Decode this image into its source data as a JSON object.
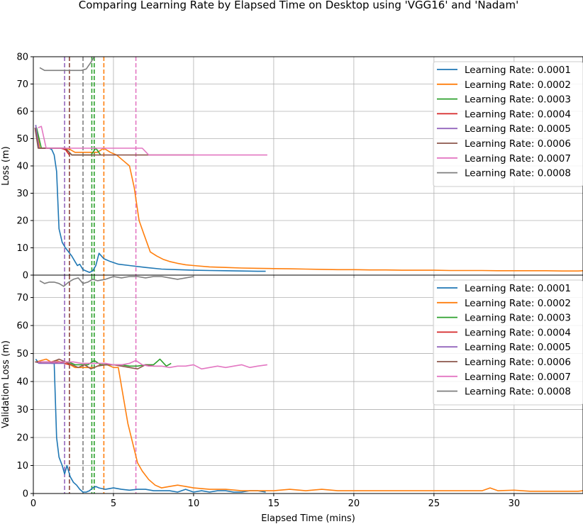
{
  "title": "Comparing Learning Rate by Elapsed Time on Desktop using 'VGG16' and 'Nadam'",
  "colors": {
    "0.0001": "#1f77b4",
    "0.0002": "#ff7f0e",
    "0.0003": "#2ca02c",
    "0.0004": "#d62728",
    "0.0005": "#9467bd",
    "0.0006": "#8c564b",
    "0.0007": "#e377c2",
    "0.0008": "#7f7f7f"
  },
  "chart_data": [
    {
      "type": "line",
      "ylabel": "Loss (m)",
      "xlabel": "",
      "xlim": [
        0,
        34.3
      ],
      "ylim": [
        0,
        80
      ],
      "grid": true,
      "legend_position": "upper right",
      "xticks": [
        0,
        5,
        10,
        15,
        20,
        25,
        30
      ],
      "yticks": [
        0,
        10,
        20,
        30,
        40,
        50,
        60,
        70,
        80
      ],
      "series": [
        {
          "name": "Learning Rate: 0.0001",
          "color": "#1f77b4",
          "x": [
            0.15,
            0.35,
            0.55,
            0.8,
            1.0,
            1.15,
            1.3,
            1.45,
            1.6,
            1.8,
            2.0,
            2.2,
            2.4,
            2.6,
            2.75,
            2.9,
            3.1,
            3.3,
            3.5,
            3.7,
            3.9,
            4.1,
            4.4,
            4.8,
            5.3,
            6.0,
            7.0,
            8.0,
            9.0,
            10.0,
            11.0,
            12.0,
            13.0,
            14.0,
            14.5
          ],
          "y": [
            55.0,
            46.5,
            46.5,
            46.5,
            46.5,
            46.0,
            44.0,
            38.0,
            17.0,
            12.0,
            10.0,
            8.5,
            7.0,
            5.0,
            3.5,
            4.0,
            2.0,
            1.5,
            1.0,
            1.5,
            3.5,
            8.0,
            6.0,
            5.0,
            4.0,
            3.5,
            2.8,
            2.2,
            2.0,
            1.8,
            1.7,
            1.6,
            1.5,
            1.4,
            1.4
          ]
        },
        {
          "name": "Learning Rate: 0.0002",
          "color": "#ff7f0e",
          "x": [
            0.2,
            0.4,
            0.6,
            0.8,
            1.0,
            1.3,
            1.6,
            2.0,
            2.3,
            2.6,
            3.0,
            3.3,
            3.6,
            4.0,
            4.4,
            4.8,
            5.2,
            5.6,
            6.0,
            6.3,
            6.6,
            6.9,
            7.3,
            7.7,
            8.1,
            8.5,
            9.0,
            9.5,
            10.0,
            11.0,
            12.0,
            13.0,
            14.0,
            15.0,
            16.0,
            17.0,
            18.0,
            19.0,
            20.0,
            21.0,
            22.0,
            23.0,
            24.0,
            25.0,
            26.0,
            27.0,
            28.0,
            29.0,
            30.0,
            31.0,
            32.0,
            33.0,
            34.0,
            34.3
          ],
          "y": [
            54.0,
            46.5,
            46.5,
            46.5,
            46.5,
            46.5,
            46.5,
            46.5,
            46.0,
            45.0,
            45.0,
            45.0,
            45.0,
            45.0,
            46.5,
            45.0,
            44.0,
            42.0,
            40.0,
            32.0,
            20.0,
            15.0,
            8.5,
            7.0,
            5.8,
            5.0,
            4.3,
            3.8,
            3.5,
            3.0,
            2.8,
            2.6,
            2.5,
            2.4,
            2.3,
            2.2,
            2.1,
            2.0,
            2.0,
            1.9,
            1.9,
            1.8,
            1.8,
            1.8,
            1.7,
            1.7,
            1.7,
            1.6,
            1.6,
            1.6,
            1.6,
            1.5,
            1.5,
            1.6
          ]
        },
        {
          "name": "Learning Rate: 0.0003",
          "color": "#2ca02c",
          "x": [
            0.2,
            0.5,
            0.8,
            1.2,
            1.6,
            2.0,
            2.4,
            2.8,
            3.2,
            3.6,
            3.9,
            4.2
          ],
          "y": [
            54.0,
            46.5,
            46.5,
            46.5,
            46.5,
            46.5,
            44.0,
            44.0,
            44.0,
            44.0,
            46.5,
            44.0
          ]
        },
        {
          "name": "Learning Rate: 0.0004",
          "color": "#d62728",
          "x": [
            0.15,
            0.35,
            0.55,
            0.8,
            1.1,
            1.4,
            1.7,
            2.0,
            2.25
          ],
          "y": [
            53.0,
            46.5,
            46.5,
            46.5,
            46.5,
            46.5,
            46.5,
            46.0,
            44.0
          ]
        },
        {
          "name": "Learning Rate: 0.0005",
          "color": "#9467bd",
          "x": [
            0.15,
            0.35,
            0.6,
            0.9,
            1.2,
            1.5,
            1.8,
            1.95
          ],
          "y": [
            55.0,
            46.5,
            46.5,
            46.5,
            46.5,
            46.5,
            46.5,
            46.5
          ]
        },
        {
          "name": "Learning Rate: 0.0006",
          "color": "#8c564b",
          "x": [
            0.1,
            0.3,
            0.6,
            1.0,
            1.5,
            2.0,
            2.4,
            3.0,
            4.0,
            5.0,
            6.0,
            7.0,
            8.0,
            9.0,
            10.0
          ],
          "y": [
            54.0,
            46.5,
            46.5,
            46.5,
            46.5,
            46.5,
            44.0,
            44.0,
            44.0,
            44.0,
            44.0,
            44.0,
            44.0,
            44.0,
            44.0
          ]
        },
        {
          "name": "Learning Rate: 0.0007",
          "color": "#e377c2",
          "x": [
            0.3,
            0.5,
            0.8,
            1.2,
            1.6,
            2.0,
            2.5,
            3.0,
            3.5,
            4.0,
            4.5,
            5.0,
            5.5,
            6.0,
            6.4,
            6.8,
            7.2,
            8.0,
            9.0,
            10.0,
            11.0,
            12.0,
            13.0,
            14.0,
            14.6
          ],
          "y": [
            54.0,
            54.5,
            46.5,
            46.5,
            46.5,
            46.5,
            46.5,
            46.5,
            46.5,
            46.5,
            46.5,
            46.5,
            46.5,
            46.5,
            46.5,
            46.5,
            44.0,
            44.0,
            44.0,
            44.0,
            44.0,
            44.0,
            44.0,
            44.0,
            44.0
          ]
        },
        {
          "name": "Learning Rate: 0.0008",
          "color": "#7f7f7f",
          "x": [
            0.4,
            0.7,
            1.0,
            1.5,
            2.0,
            2.5,
            3.0,
            3.3,
            3.6,
            3.8,
            3.9
          ],
          "y": [
            76.0,
            75.0,
            75.0,
            75.0,
            75.0,
            75.0,
            75.0,
            75.5,
            78.0,
            80.0,
            82.0
          ]
        }
      ],
      "vlines": [
        {
          "x": 1.95,
          "color": "#9467bd"
        },
        {
          "x": 2.25,
          "color": "#d62728"
        },
        {
          "x": 2.25,
          "color": "#8c564b"
        },
        {
          "x": 3.1,
          "color": "#7f7f7f"
        },
        {
          "x": 3.65,
          "color": "#2ca02c"
        },
        {
          "x": 3.8,
          "color": "#2ca02c"
        },
        {
          "x": 4.4,
          "color": "#ff7f0e"
        },
        {
          "x": 6.4,
          "color": "#e377c2"
        }
      ]
    },
    {
      "type": "line",
      "ylabel": "Validation Loss (m)",
      "xlabel": "Elapsed Time (mins)",
      "xlim": [
        0,
        34.3
      ],
      "ylim": [
        0,
        78
      ],
      "grid": true,
      "legend_position": "upper right",
      "xticks": [
        0,
        5,
        10,
        15,
        20,
        25,
        30
      ],
      "yticks": [
        0,
        10,
        20,
        30,
        40,
        50,
        60,
        70
      ],
      "series": [
        {
          "name": "Learning Rate: 0.0001",
          "color": "#1f77b4",
          "x": [
            0.15,
            0.35,
            0.55,
            0.8,
            1.0,
            1.15,
            1.3,
            1.45,
            1.6,
            1.8,
            1.95,
            2.1,
            2.3,
            2.5,
            2.7,
            2.9,
            3.1,
            3.3,
            3.5,
            3.7,
            3.9,
            4.1,
            4.5,
            5.0,
            5.5,
            6.0,
            6.5,
            7.0,
            7.5,
            8.0,
            8.5,
            9.0,
            9.5,
            10.0,
            10.5,
            11.0,
            11.5,
            12.0,
            12.5,
            13.0,
            13.5,
            14.0,
            14.5
          ],
          "y": [
            48.0,
            46.5,
            47.0,
            47.0,
            47.0,
            46.5,
            46.5,
            20.0,
            13.0,
            10.0,
            7.0,
            10.0,
            6.0,
            4.0,
            3.0,
            1.5,
            0.5,
            0.5,
            1.0,
            2.0,
            2.5,
            2.0,
            1.5,
            2.0,
            1.5,
            1.2,
            1.5,
            1.5,
            1.0,
            1.0,
            1.0,
            0.5,
            1.5,
            0.5,
            1.0,
            0.5,
            1.0,
            1.0,
            0.5,
            0.5,
            1.0,
            1.0,
            0.5
          ]
        },
        {
          "name": "Learning Rate: 0.0002",
          "color": "#ff7f0e",
          "x": [
            0.2,
            0.5,
            0.8,
            1.1,
            1.4,
            1.7,
            2.0,
            2.3,
            2.6,
            3.0,
            3.4,
            3.8,
            4.2,
            4.6,
            5.0,
            5.3,
            5.6,
            5.9,
            6.2,
            6.5,
            6.8,
            7.2,
            7.6,
            8.0,
            8.5,
            9.0,
            9.5,
            10.0,
            11.0,
            12.0,
            13.0,
            14.0,
            15.0,
            16.0,
            17.0,
            18.0,
            19.0,
            20.0,
            21.0,
            22.0,
            23.0,
            24.0,
            25.0,
            26.0,
            27.0,
            28.0,
            28.5,
            29.0,
            30.0,
            31.0,
            32.0,
            33.0,
            34.0,
            34.3
          ],
          "y": [
            47.0,
            47.5,
            48.0,
            47.0,
            47.5,
            47.0,
            47.0,
            46.0,
            45.0,
            45.0,
            45.0,
            45.0,
            46.0,
            46.0,
            45.0,
            45.0,
            35.0,
            25.0,
            18.0,
            11.0,
            8.0,
            5.0,
            3.0,
            2.0,
            2.5,
            3.0,
            2.5,
            2.0,
            1.5,
            1.5,
            1.0,
            1.0,
            1.0,
            1.5,
            1.0,
            1.5,
            1.0,
            1.0,
            1.0,
            1.0,
            1.0,
            1.0,
            1.0,
            1.0,
            1.0,
            1.0,
            2.0,
            1.0,
            1.2,
            0.8,
            0.8,
            0.8,
            0.8,
            1.0
          ]
        },
        {
          "name": "Learning Rate: 0.0003",
          "color": "#2ca02c",
          "x": [
            0.2,
            0.6,
            1.0,
            1.4,
            1.8,
            2.2,
            2.6,
            3.0,
            3.4,
            3.8,
            4.2,
            4.6,
            5.0,
            5.5,
            6.0,
            6.5,
            7.0,
            7.5,
            7.9,
            8.3,
            8.6
          ],
          "y": [
            47.0,
            47.0,
            47.0,
            47.0,
            47.0,
            47.0,
            46.0,
            46.0,
            46.0,
            47.5,
            46.0,
            46.0,
            46.0,
            46.0,
            45.5,
            45.5,
            46.0,
            46.0,
            48.0,
            45.5,
            46.5
          ]
        },
        {
          "name": "Learning Rate: 0.0004",
          "color": "#d62728",
          "x": [
            0.15,
            0.4,
            0.7,
            1.0,
            1.3,
            1.6,
            1.9,
            2.25
          ],
          "y": [
            47.0,
            47.0,
            47.0,
            47.0,
            46.5,
            47.0,
            46.5,
            46.0
          ]
        },
        {
          "name": "Learning Rate: 0.0005",
          "color": "#9467bd",
          "x": [
            0.15,
            0.4,
            0.7,
            1.0,
            1.3,
            1.6,
            1.95
          ],
          "y": [
            47.0,
            46.5,
            46.5,
            46.5,
            46.5,
            46.5,
            46.5
          ]
        },
        {
          "name": "Learning Rate: 0.0006",
          "color": "#8c564b",
          "x": [
            0.1,
            0.4,
            0.8,
            1.2,
            1.6,
            2.0,
            2.4,
            2.8,
            3.2,
            3.6,
            4.0,
            4.5,
            5.0,
            5.5,
            6.0,
            6.5,
            7.0,
            7.5,
            8.0
          ],
          "y": [
            47.0,
            47.0,
            47.0,
            47.0,
            48.0,
            47.0,
            46.0,
            45.0,
            46.0,
            44.5,
            45.5,
            46.0,
            46.0,
            45.5,
            45.0,
            44.5,
            46.0,
            45.5,
            45.5
          ]
        },
        {
          "name": "Learning Rate: 0.0007",
          "color": "#e377c2",
          "x": [
            0.3,
            0.6,
            1.0,
            1.5,
            2.0,
            2.5,
            3.0,
            3.5,
            4.0,
            4.5,
            5.0,
            5.5,
            6.0,
            6.4,
            6.8,
            7.2,
            7.6,
            8.0,
            8.5,
            9.0,
            9.5,
            10.0,
            10.5,
            11.0,
            11.5,
            12.0,
            12.5,
            13.0,
            13.5,
            14.0,
            14.6
          ],
          "y": [
            47.0,
            47.0,
            47.0,
            47.0,
            47.0,
            47.0,
            46.5,
            46.5,
            46.5,
            46.5,
            46.0,
            46.0,
            46.5,
            47.5,
            46.0,
            45.5,
            45.5,
            45.5,
            45.0,
            45.5,
            45.5,
            46.0,
            44.5,
            45.0,
            45.5,
            45.0,
            45.5,
            46.0,
            45.0,
            45.5,
            46.0
          ]
        },
        {
          "name": "Learning Rate: 0.0008",
          "color": "#7f7f7f",
          "x": [
            0.4,
            0.7,
            1.0,
            1.3,
            1.6,
            1.9,
            2.2,
            2.5,
            2.8,
            3.1,
            3.4,
            3.7,
            4.0,
            4.5,
            5.0,
            5.5,
            6.0,
            6.5,
            7.0,
            7.5,
            8.0,
            8.5,
            9.0,
            9.5,
            10.0
          ],
          "y": [
            76.0,
            75.0,
            75.5,
            75.5,
            75.0,
            74.0,
            75.5,
            76.5,
            77.0,
            75.0,
            75.5,
            76.5,
            76.0,
            76.5,
            77.5,
            77.0,
            77.5,
            77.5,
            77.0,
            77.5,
            77.5,
            77.0,
            76.5,
            77.0,
            77.5
          ]
        }
      ],
      "vlines": [
        {
          "x": 1.95,
          "color": "#9467bd"
        },
        {
          "x": 2.25,
          "color": "#d62728"
        },
        {
          "x": 2.25,
          "color": "#8c564b"
        },
        {
          "x": 3.1,
          "color": "#7f7f7f"
        },
        {
          "x": 3.65,
          "color": "#2ca02c"
        },
        {
          "x": 3.8,
          "color": "#2ca02c"
        },
        {
          "x": 4.4,
          "color": "#ff7f0e"
        },
        {
          "x": 6.4,
          "color": "#e377c2"
        }
      ]
    }
  ]
}
